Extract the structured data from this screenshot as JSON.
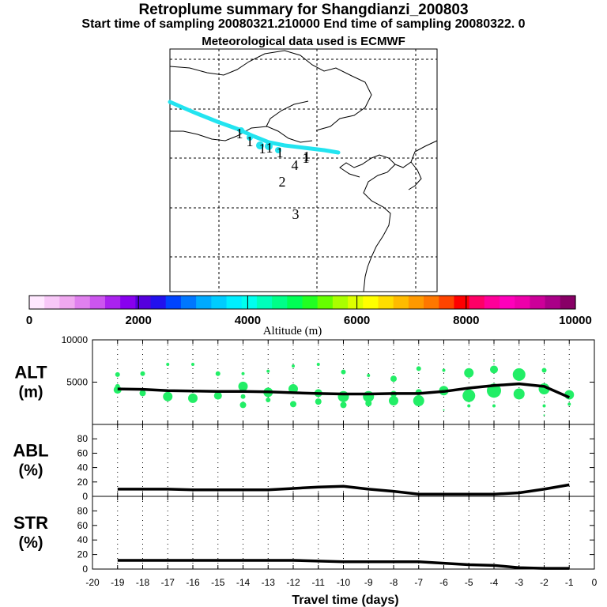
{
  "titles": {
    "main": "Retroplume summary for Shangdianzi_200803",
    "sub": "Start time of sampling 20080321.210000     End time of sampling 20080322.     0",
    "met": "Meteorological data used is ECMWF"
  },
  "colors": {
    "track": "#22e4f0",
    "dots": "#22ee66",
    "line": "#000000"
  },
  "map_labels": [
    "1",
    "1",
    "1",
    "1",
    "1",
    "1",
    "4",
    "1",
    "2",
    "3"
  ],
  "colorbar": {
    "label": "Altitude (m)",
    "ticks": [
      "0",
      "2000",
      "4000",
      "6000",
      "8000",
      "10000"
    ],
    "colors": [
      "#ffe8ff",
      "#f8c8f8",
      "#f0a8f0",
      "#e080ee",
      "#cc55ee",
      "#aa22ee",
      "#8800ee",
      "#5500dd",
      "#2211ee",
      "#0044ff",
      "#0077ff",
      "#00aaff",
      "#00ccff",
      "#00eeff",
      "#00ffee",
      "#00ffbb",
      "#00ff88",
      "#00ff55",
      "#22ff22",
      "#66ff00",
      "#aaff00",
      "#ddff00",
      "#ffff00",
      "#ffdd00",
      "#ffbb00",
      "#ff9900",
      "#ff7700",
      "#ff4400",
      "#ff0000",
      "#ff0066",
      "#ff0099",
      "#ff00bb",
      "#ee00aa",
      "#cc0099",
      "#aa0088",
      "#880066"
    ]
  },
  "chart_data": [
    {
      "type": "scatter",
      "title": "ALT (m)",
      "ylabel_top": "ALT",
      "ylabel_bottom": "(m)",
      "xlim": [
        -20,
        0
      ],
      "ylim": [
        0,
        10000
      ],
      "yticks": [
        "5000",
        "10000"
      ],
      "line": {
        "x": [
          -19,
          -18,
          -17,
          -16,
          -15,
          -14,
          -13,
          -12,
          -11,
          -10,
          -9,
          -8,
          -7,
          -6,
          -5,
          -4,
          -3,
          -2,
          -1
        ],
        "y": [
          4200,
          4150,
          4000,
          3950,
          3900,
          3900,
          3850,
          3750,
          3650,
          3600,
          3600,
          3650,
          3650,
          3900,
          4300,
          4600,
          4800,
          4500,
          3200
        ]
      },
      "dots": [
        {
          "x": -19,
          "y": 5900,
          "size": 3
        },
        {
          "x": -19,
          "y": 4100,
          "size": 5
        },
        {
          "x": -19,
          "y": 4500,
          "size": 3
        },
        {
          "x": -18,
          "y": 6000,
          "size": 3
        },
        {
          "x": -18,
          "y": 3700,
          "size": 4
        },
        {
          "x": -17,
          "y": 7100,
          "size": 2
        },
        {
          "x": -17,
          "y": 3300,
          "size": 6
        },
        {
          "x": -16,
          "y": 7100,
          "size": 2
        },
        {
          "x": -16,
          "y": 3100,
          "size": 6
        },
        {
          "x": -15,
          "y": 6000,
          "size": 3
        },
        {
          "x": -15,
          "y": 3400,
          "size": 5
        },
        {
          "x": -14,
          "y": 6000,
          "size": 2
        },
        {
          "x": -14,
          "y": 4500,
          "size": 6
        },
        {
          "x": -14,
          "y": 3300,
          "size": 3
        },
        {
          "x": -14,
          "y": 2300,
          "size": 4
        },
        {
          "x": -13,
          "y": 6300,
          "size": 2
        },
        {
          "x": -13,
          "y": 3800,
          "size": 6
        },
        {
          "x": -13,
          "y": 2900,
          "size": 3
        },
        {
          "x": -12,
          "y": 6900,
          "size": 2
        },
        {
          "x": -12,
          "y": 4200,
          "size": 6
        },
        {
          "x": -12,
          "y": 2400,
          "size": 4
        },
        {
          "x": -11,
          "y": 7100,
          "size": 2
        },
        {
          "x": -11,
          "y": 3700,
          "size": 5
        },
        {
          "x": -11,
          "y": 2700,
          "size": 4
        },
        {
          "x": -10,
          "y": 6200,
          "size": 3
        },
        {
          "x": -10,
          "y": 3300,
          "size": 7
        },
        {
          "x": -10,
          "y": 2300,
          "size": 4
        },
        {
          "x": -9,
          "y": 5800,
          "size": 2
        },
        {
          "x": -9,
          "y": 3300,
          "size": 7
        },
        {
          "x": -9,
          "y": 2500,
          "size": 4
        },
        {
          "x": -8,
          "y": 5400,
          "size": 4
        },
        {
          "x": -8,
          "y": 3600,
          "size": 4
        },
        {
          "x": -8,
          "y": 2800,
          "size": 6
        },
        {
          "x": -7,
          "y": 6600,
          "size": 3
        },
        {
          "x": -7,
          "y": 3800,
          "size": 4
        },
        {
          "x": -7,
          "y": 2800,
          "size": 7
        },
        {
          "x": -6,
          "y": 6400,
          "size": 2
        },
        {
          "x": -6,
          "y": 4000,
          "size": 6
        },
        {
          "x": -6,
          "y": 1700,
          "size": 1
        },
        {
          "x": -5,
          "y": 6100,
          "size": 6
        },
        {
          "x": -5,
          "y": 3400,
          "size": 8
        },
        {
          "x": -5,
          "y": 2200,
          "size": 2
        },
        {
          "x": -4,
          "y": 7500,
          "size": 1
        },
        {
          "x": -4,
          "y": 6500,
          "size": 5
        },
        {
          "x": -4,
          "y": 4000,
          "size": 9
        },
        {
          "x": -4,
          "y": 2200,
          "size": 2
        },
        {
          "x": -3,
          "y": 5900,
          "size": 8
        },
        {
          "x": -3,
          "y": 3600,
          "size": 7
        },
        {
          "x": -2,
          "y": 6400,
          "size": 3
        },
        {
          "x": -2,
          "y": 4200,
          "size": 7
        },
        {
          "x": -2,
          "y": 2200,
          "size": 2
        },
        {
          "x": -2,
          "y": 1100,
          "size": 1
        },
        {
          "x": -1,
          "y": 3500,
          "size": 6
        },
        {
          "x": -1,
          "y": 2400,
          "size": 2
        }
      ]
    },
    {
      "type": "line",
      "title": "ABL (%)",
      "ylabel_top": "ABL",
      "ylabel_bottom": "(%)",
      "xlim": [
        -20,
        0
      ],
      "ylim": [
        0,
        100
      ],
      "yticks": [
        "0",
        "20",
        "40",
        "60",
        "80"
      ],
      "x": [
        -19,
        -18,
        -17,
        -16,
        -15,
        -14,
        -13,
        -12,
        -11,
        -10,
        -9,
        -8,
        -7,
        -6,
        -5,
        -4,
        -3,
        -2,
        -1
      ],
      "y": [
        10,
        10,
        10,
        9,
        9,
        9,
        9,
        11,
        13,
        14,
        10,
        7,
        3,
        3,
        3,
        3,
        5,
        10,
        16
      ]
    },
    {
      "type": "line",
      "title": "STR (%)",
      "ylabel_top": "STR",
      "ylabel_bottom": "(%)",
      "xlim": [
        -20,
        0
      ],
      "ylim": [
        0,
        100
      ],
      "yticks": [
        "0",
        "20",
        "40",
        "60",
        "80"
      ],
      "x": [
        -19,
        -18,
        -17,
        -16,
        -15,
        -14,
        -13,
        -12,
        -11,
        -10,
        -9,
        -8,
        -7,
        -6,
        -5,
        -4,
        -3,
        -2,
        -1
      ],
      "y": [
        12,
        12,
        12,
        12,
        12,
        12,
        12,
        12,
        11,
        10,
        10,
        10,
        10,
        8,
        6,
        5,
        2,
        1,
        1
      ],
      "xlabel": "Travel time (days)",
      "xticks": [
        "-20",
        "-19",
        "-18",
        "-17",
        "-16",
        "-15",
        "-14",
        "-13",
        "-12",
        "-11",
        "-10",
        "-9",
        "-8",
        "-7",
        "-6",
        "-5",
        "-4",
        "-3",
        "-2",
        "-1",
        "0"
      ]
    }
  ]
}
